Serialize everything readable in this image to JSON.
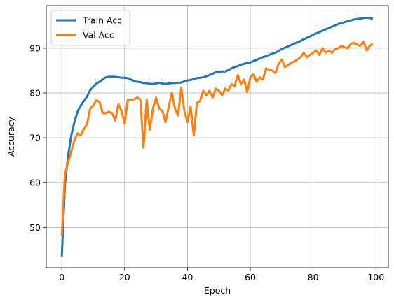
{
  "chart_data": {
    "type": "line",
    "title": "",
    "xlabel": "Epoch",
    "ylabel": "Accuracy",
    "xlim": [
      -4.95,
      103.95
    ],
    "ylim": [
      41.0,
      99.5
    ],
    "xticks": [
      0,
      20,
      40,
      60,
      80,
      100
    ],
    "yticks": [
      50,
      60,
      70,
      80,
      90
    ],
    "grid": true,
    "legend": "top-left",
    "series": [
      {
        "name": "Train Acc",
        "color": "#1f77b4",
        "x": [
          0,
          1,
          2,
          3,
          4,
          5,
          6,
          7,
          8,
          9,
          10,
          11,
          12,
          13,
          14,
          15,
          16,
          17,
          18,
          19,
          20,
          21,
          22,
          23,
          24,
          25,
          26,
          27,
          28,
          29,
          30,
          31,
          32,
          33,
          34,
          35,
          36,
          37,
          38,
          39,
          40,
          41,
          42,
          43,
          44,
          45,
          46,
          47,
          48,
          49,
          50,
          51,
          52,
          53,
          54,
          55,
          56,
          57,
          58,
          59,
          60,
          61,
          62,
          63,
          64,
          65,
          66,
          67,
          68,
          69,
          70,
          71,
          72,
          73,
          74,
          75,
          76,
          77,
          78,
          79,
          80,
          81,
          82,
          83,
          84,
          85,
          86,
          87,
          88,
          89,
          90,
          91,
          92,
          93,
          94,
          95,
          96,
          97,
          98,
          99
        ],
        "values": [
          43.5,
          59.5,
          66.0,
          70.5,
          73.5,
          75.8,
          77.2,
          78.2,
          79.2,
          80.6,
          81.4,
          82.1,
          82.5,
          83.0,
          83.5,
          83.6,
          83.6,
          83.6,
          83.5,
          83.4,
          83.4,
          83.3,
          83.0,
          82.6,
          82.5,
          82.4,
          82.2,
          82.2,
          82.0,
          82.0,
          82.1,
          82.3,
          82.1,
          82.0,
          82.1,
          82.2,
          82.2,
          82.3,
          82.3,
          82.6,
          82.8,
          82.9,
          83.1,
          83.3,
          83.4,
          83.5,
          83.7,
          84.0,
          84.3,
          84.6,
          84.6,
          84.8,
          84.8,
          85.1,
          85.5,
          85.8,
          86.0,
          86.3,
          86.5,
          86.7,
          86.8,
          87.1,
          87.4,
          87.7,
          88.0,
          88.2,
          88.5,
          88.8,
          89.0,
          89.4,
          89.8,
          90.1,
          90.4,
          90.7,
          91.0,
          91.3,
          91.6,
          92.0,
          92.3,
          92.6,
          93.0,
          93.3,
          93.6,
          93.9,
          94.2,
          94.5,
          94.8,
          95.1,
          95.4,
          95.6,
          95.8,
          96.0,
          96.2,
          96.4,
          96.5,
          96.6,
          96.7,
          96.8,
          96.7,
          96.6
        ]
      },
      {
        "name": "Val Acc",
        "color": "#ff7f0e",
        "x": [
          0,
          1,
          2,
          3,
          4,
          5,
          6,
          7,
          8,
          9,
          10,
          11,
          12,
          13,
          14,
          15,
          16,
          17,
          18,
          19,
          20,
          21,
          22,
          23,
          24,
          25,
          26,
          27,
          28,
          29,
          30,
          31,
          32,
          33,
          34,
          35,
          36,
          37,
          38,
          39,
          40,
          41,
          42,
          43,
          44,
          45,
          46,
          47,
          48,
          49,
          50,
          51,
          52,
          53,
          54,
          55,
          56,
          57,
          58,
          59,
          60,
          61,
          62,
          63,
          64,
          65,
          66,
          67,
          68,
          69,
          70,
          71,
          72,
          73,
          74,
          75,
          76,
          77,
          78,
          79,
          80,
          81,
          82,
          83,
          84,
          85,
          86,
          87,
          88,
          89,
          90,
          91,
          92,
          93,
          94,
          95,
          96,
          97,
          98,
          99
        ],
        "values": [
          48.0,
          62.0,
          64.5,
          67.0,
          69.5,
          71.0,
          70.5,
          72.0,
          73.0,
          76.5,
          77.2,
          78.4,
          78.0,
          75.5,
          75.5,
          75.8,
          75.5,
          73.8,
          77.5,
          76.0,
          73.2,
          78.5,
          78.5,
          78.6,
          79.0,
          78.5,
          67.8,
          78.5,
          71.8,
          76.5,
          79.0,
          76.5,
          76.0,
          73.5,
          76.8,
          80.0,
          76.5,
          75.0,
          81.2,
          76.0,
          73.5,
          77.0,
          70.5,
          77.8,
          78.2,
          80.5,
          79.5,
          80.5,
          79.0,
          81.0,
          80.5,
          79.5,
          81.0,
          80.5,
          82.0,
          81.5,
          84.0,
          82.0,
          83.0,
          80.2,
          83.5,
          84.2,
          82.5,
          83.5,
          83.0,
          85.5,
          85.2,
          85.0,
          84.5,
          86.5,
          87.5,
          85.8,
          86.2,
          86.8,
          87.0,
          87.5,
          88.0,
          89.0,
          88.0,
          88.5,
          89.0,
          89.5,
          88.5,
          90.0,
          89.0,
          89.5,
          89.0,
          89.8,
          90.0,
          90.5,
          90.2,
          90.0,
          91.0,
          91.2,
          90.8,
          90.5,
          91.5,
          89.5,
          90.5,
          91.0
        ]
      }
    ]
  }
}
